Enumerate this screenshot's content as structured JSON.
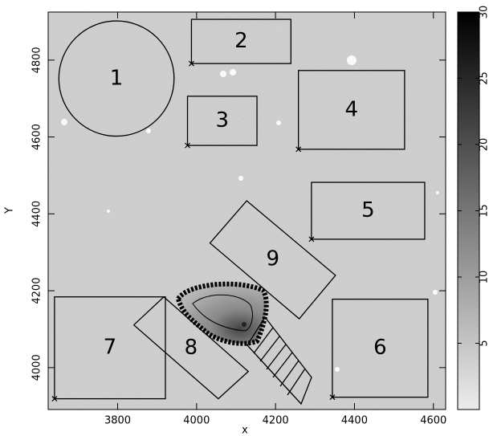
{
  "chart_data": {
    "type": "image",
    "xlabel": "x",
    "ylabel": "Y",
    "xlim": [
      3624,
      4631
    ],
    "ylim": [
      3891,
      4925
    ],
    "xticks": [
      3800,
      4000,
      4200,
      4400,
      4600
    ],
    "yticks": [
      4000,
      4200,
      4400,
      4600,
      4800
    ],
    "colorbar": {
      "lim": [
        0,
        30
      ],
      "ticks": [
        5,
        10,
        15,
        20,
        25,
        30
      ]
    },
    "regions": [
      {
        "label": "1",
        "shape": "circle",
        "center": [
          3797,
          4752
        ],
        "radius": 146
      },
      {
        "label": "2",
        "shape": "box",
        "x": [
          3987,
          4239
        ],
        "y": [
          4791,
          4906
        ]
      },
      {
        "label": "3",
        "shape": "box",
        "x": [
          3977,
          4153
        ],
        "y": [
          4578,
          4706
        ]
      },
      {
        "label": "4",
        "shape": "box",
        "x": [
          4258,
          4527
        ],
        "y": [
          4568,
          4773
        ]
      },
      {
        "label": "5",
        "shape": "box",
        "x": [
          4291,
          4578
        ],
        "y": [
          4334,
          4482
        ]
      },
      {
        "label": "6",
        "shape": "box",
        "x": [
          4344,
          4586
        ],
        "y": [
          3923,
          4178
        ]
      },
      {
        "label": "7",
        "shape": "box",
        "x": [
          3640,
          3921
        ],
        "y": [
          3919,
          4184
        ]
      },
      {
        "label": "8",
        "shape": "polygon",
        "x": [
          3841,
          3917,
          4131,
          4055
        ],
        "y": [
          4111,
          4184,
          3990,
          3919
        ]
      },
      {
        "label": "9",
        "shape": "polygon",
        "x": [
          4034,
          4127,
          4352,
          4260
        ],
        "y": [
          4324,
          4434,
          4240,
          4127
        ]
      }
    ]
  }
}
